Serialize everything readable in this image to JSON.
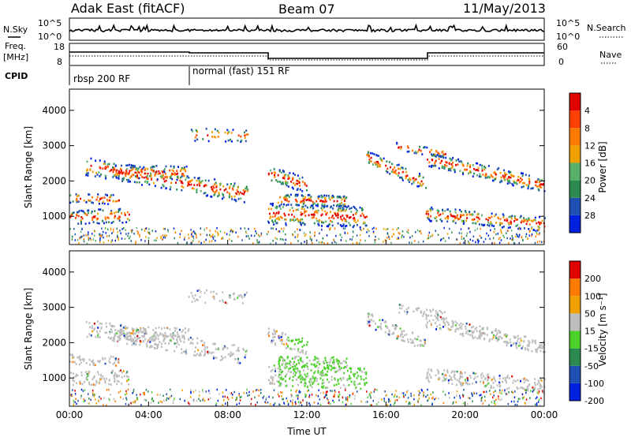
{
  "header": {
    "title": "Adak East (fitACF)",
    "beam": "Beam 07",
    "date": "11/May/2013"
  },
  "top_panels": {
    "nsky_label": "N.Sky",
    "nsearch_label": "N.Search",
    "noise_ticks": [
      "10^5",
      "10^0"
    ],
    "freq_label": "Freq.",
    "freq_unit": "[MHz]",
    "freq_ticks": [
      "18",
      "8"
    ],
    "nave_label": "Nave",
    "nave_ticks": [
      "60",
      "0"
    ],
    "cpid_label": "CPID",
    "cpid_segments": [
      {
        "name": "rbsp 200 RF",
        "start_hour": 0,
        "end_hour": 6
      },
      {
        "name": "normal (fast) 151 RF",
        "start_hour": 6,
        "end_hour": 24
      }
    ]
  },
  "chart_data": [
    {
      "type": "heatmap",
      "panel": "power",
      "ylabel": "Slant Range [km]",
      "xlabel": "",
      "ylim": [
        200,
        4600
      ],
      "yticks": [
        "1000",
        "2000",
        "3000",
        "4000"
      ],
      "xticks": [
        "00:00",
        "04:00",
        "08:00",
        "12:00",
        "16:00",
        "20:00",
        "00:00"
      ],
      "colorbar": {
        "label": "Power [dB]",
        "ticks": [
          "4",
          "8",
          "12",
          "16",
          "20",
          "24",
          "28"
        ]
      }
    },
    {
      "type": "heatmap",
      "panel": "velocity",
      "ylabel": "Slant Range [km]",
      "xlabel": "Time UT",
      "ylim": [
        200,
        4600
      ],
      "yticks": [
        "1000",
        "2000",
        "3000",
        "4000"
      ],
      "xticks": [
        "00:00",
        "04:00",
        "08:00",
        "12:00",
        "16:00",
        "20:00",
        "00:00"
      ],
      "colorbar": {
        "label": "Velocity [m s⁻¹]",
        "ticks": [
          "200",
          "100",
          "50",
          "15",
          "-15",
          "-50",
          "-100",
          "-200"
        ]
      }
    }
  ],
  "colors": {
    "power_scale": [
      "#0020e0",
      "#1f4fb0",
      "#2a8a50",
      "#58b06a",
      "#f0a000",
      "#ff7a00",
      "#ff4000",
      "#e00000"
    ],
    "velocity_scale": [
      "#0020e0",
      "#1f4fb0",
      "#2a8a50",
      "#4cd12a",
      "#bdbdbd",
      "#f0a000",
      "#ff7a00",
      "#e00000"
    ],
    "ground_scatter": "#bdbdbd"
  }
}
